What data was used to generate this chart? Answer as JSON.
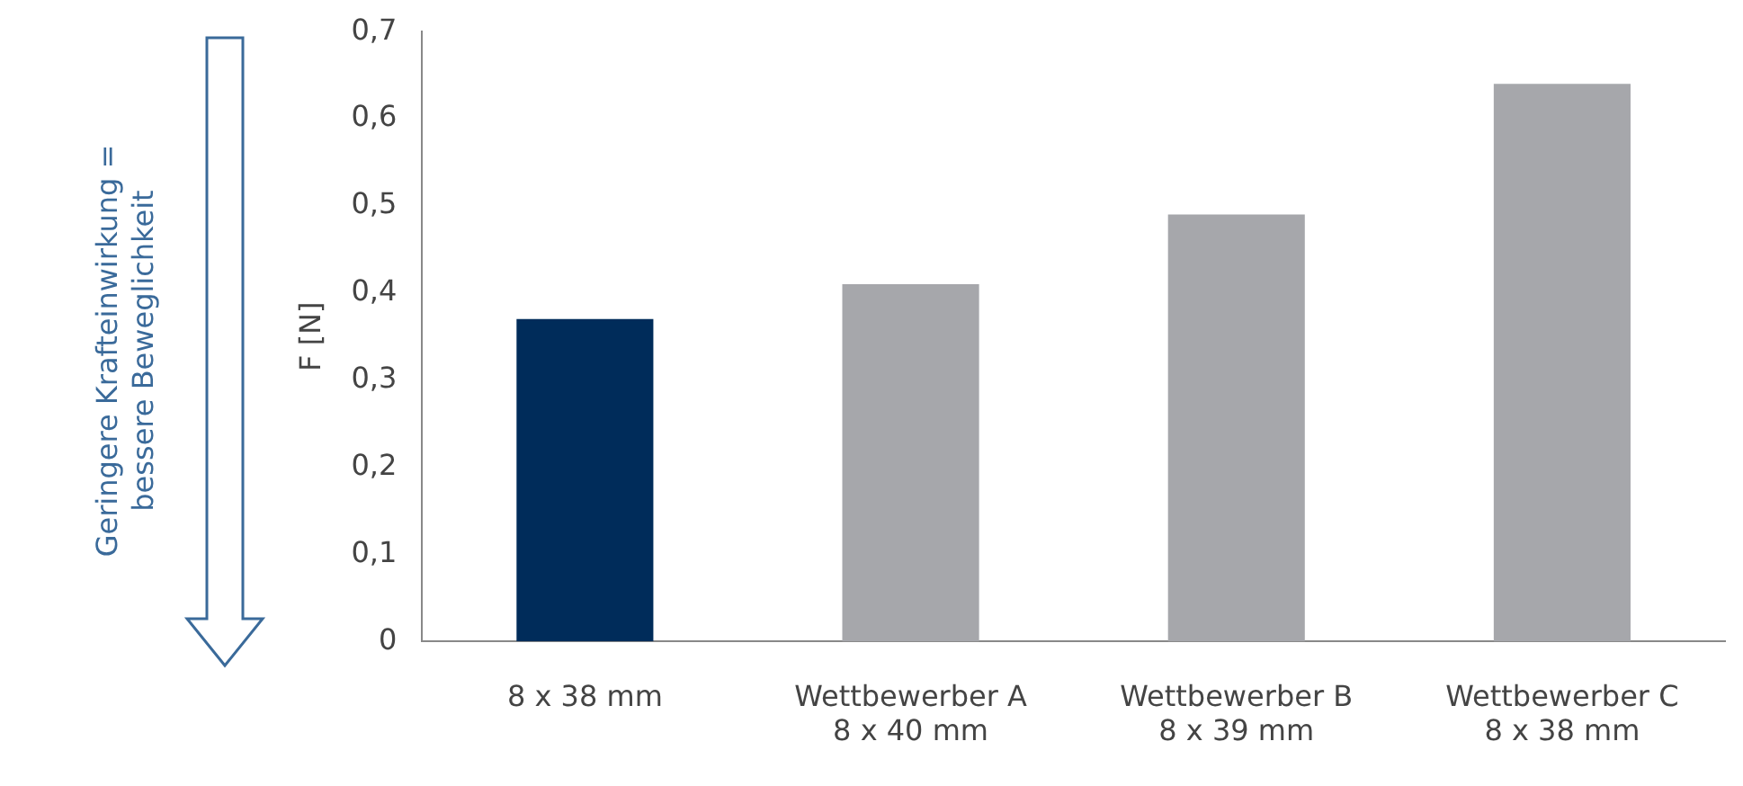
{
  "chart_data": {
    "type": "bar",
    "ylabel": "F [N]",
    "categories": [
      "8 x 38 mm",
      "Wettbewerber A\n8 x 40 mm",
      "Wettbewerber B\n8 x 39 mm",
      "Wettbewerber C\n8 x 38 mm"
    ],
    "values": [
      0.37,
      0.41,
      0.49,
      0.64
    ],
    "colors": [
      "#002c5a",
      "#a6a7ab",
      "#a6a7ab",
      "#a6a7ab"
    ],
    "ylim": [
      0,
      0.7
    ],
    "yticks": [
      {
        "value": 0,
        "label": "0"
      },
      {
        "value": 0.1,
        "label": "0,1"
      },
      {
        "value": 0.2,
        "label": "0,2"
      },
      {
        "value": 0.3,
        "label": "0,3"
      },
      {
        "value": 0.4,
        "label": "0,4"
      },
      {
        "value": 0.5,
        "label": "0,5"
      },
      {
        "value": 0.6,
        "label": "0,6"
      },
      {
        "value": 0.7,
        "label": "0,7"
      }
    ],
    "grid": false,
    "legend": false,
    "annotations": [
      "Geringere Krafteinwirkung =\nbessere Beweglichkeit"
    ]
  }
}
